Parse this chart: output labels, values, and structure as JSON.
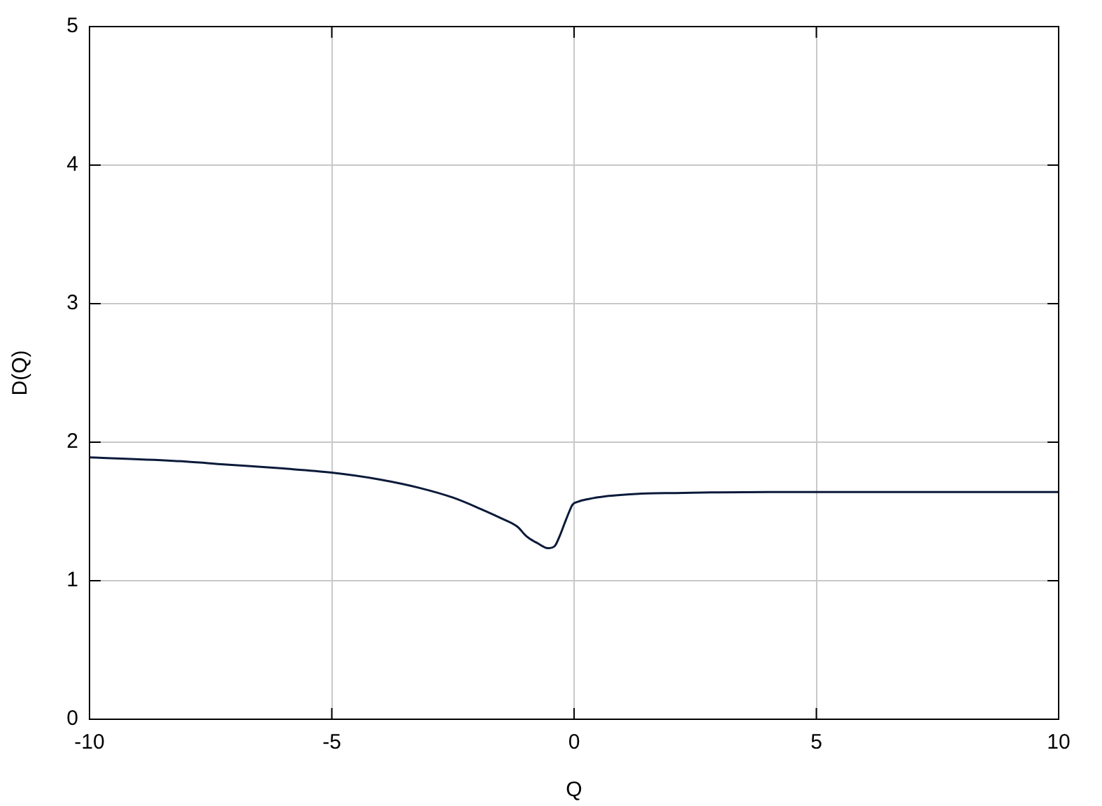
{
  "chart_data": {
    "type": "line",
    "xlabel": "Q",
    "ylabel": "D(Q)",
    "x": [
      -10,
      -8,
      -7.23,
      -6,
      -5,
      -4,
      -3.19,
      -2.5,
      -1.94,
      -1.5,
      -1.17,
      -0.98,
      -0.75,
      -0.54,
      -0.4,
      -0.3,
      -0.2,
      -0.11,
      -0.03,
      0.08,
      0.3,
      0.66,
      1,
      1.5,
      2.09,
      3,
      4,
      5,
      6,
      8,
      10
    ],
    "series": [
      {
        "color": "#0b1a3a",
        "values": [
          1.89,
          1.86,
          1.84,
          1.81,
          1.78,
          1.73,
          1.67,
          1.6,
          1.52,
          1.45,
          1.39,
          1.32,
          1.27,
          1.235,
          1.25,
          1.32,
          1.41,
          1.49,
          1.55,
          1.57,
          1.59,
          1.61,
          1.62,
          1.63,
          1.633,
          1.638,
          1.64,
          1.64,
          1.64,
          1.64,
          1.64
        ]
      }
    ],
    "xlim": [
      -10,
      10
    ],
    "xticks": [
      -10,
      -5,
      0,
      5,
      10
    ],
    "ylim": [
      0,
      5
    ],
    "yticks": [
      0,
      1,
      2,
      3,
      4,
      5
    ],
    "grid": true,
    "legend": false,
    "marker": "none",
    "line_style": "solid"
  }
}
